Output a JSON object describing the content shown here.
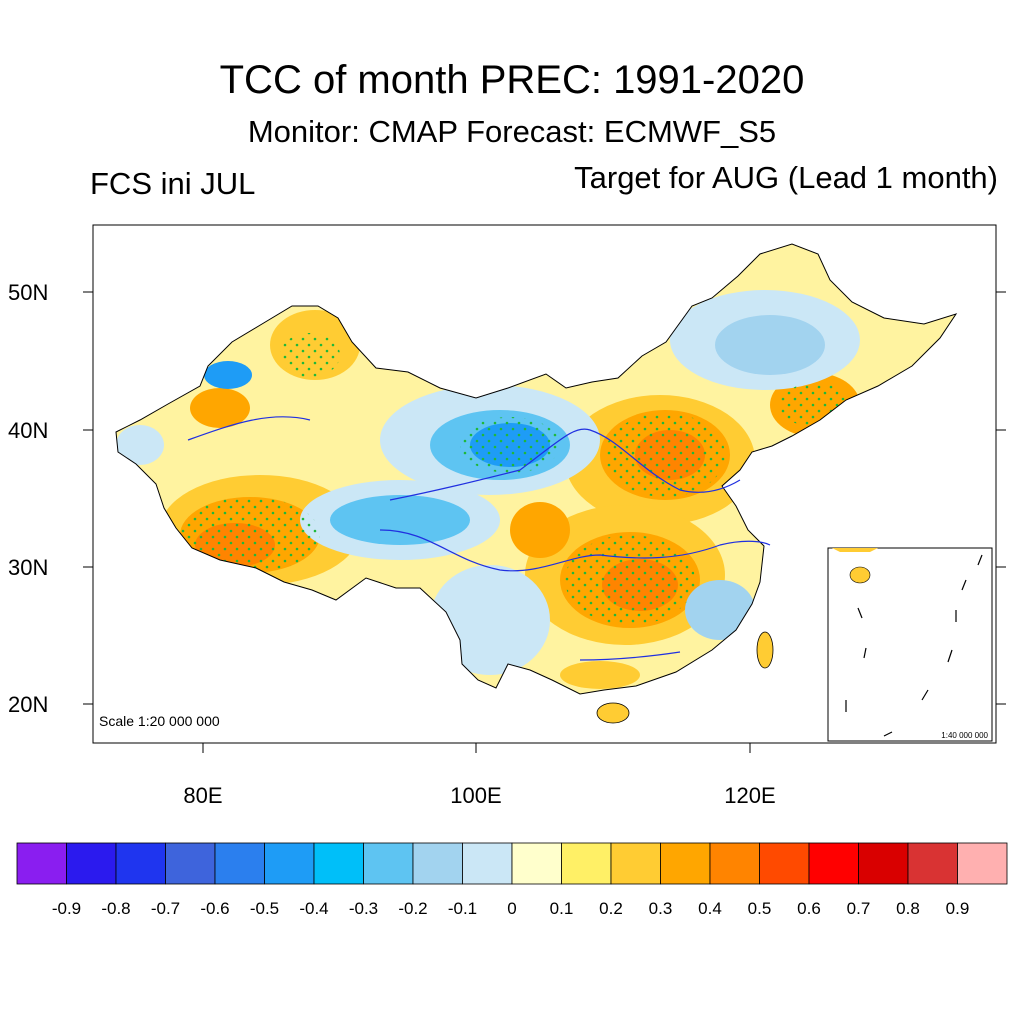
{
  "title": "TCC of month PREC: 1991-2020",
  "subtitle": "Monitor: CMAP   Forecast: ECMWF_S5",
  "left_label": "FCS ini JUL",
  "right_label": "Target for AUG (Lead 1 month)",
  "map": {
    "lat_labels": [
      "50N",
      "40N",
      "30N",
      "20N"
    ],
    "lon_labels": [
      "80E",
      "100E",
      "120E"
    ],
    "scale_text": "Scale 1:20 000 000",
    "inset_scale_text": "1:40 000 000"
  },
  "colorbar": {
    "colors": [
      "#8a1ef0",
      "#2b1aee",
      "#1f35ef",
      "#3e64dc",
      "#2b7fee",
      "#1e9cf6",
      "#00bff9",
      "#5ec4f2",
      "#a2d3ef",
      "#cbe7f6",
      "#ffffcc",
      "#fff066",
      "#ffcc33",
      "#ffa600",
      "#ff8400",
      "#ff4a00",
      "#ff0000",
      "#d90000",
      "#d93333",
      "#ffb0b0"
    ],
    "labels": [
      "-0.9",
      "-0.8",
      "-0.7",
      "-0.6",
      "-0.5",
      "-0.4",
      "-0.3",
      "-0.2",
      "-0.1",
      "0",
      "0.1",
      "0.2",
      "0.3",
      "0.4",
      "0.5",
      "0.6",
      "0.7",
      "0.8",
      "0.9"
    ]
  }
}
